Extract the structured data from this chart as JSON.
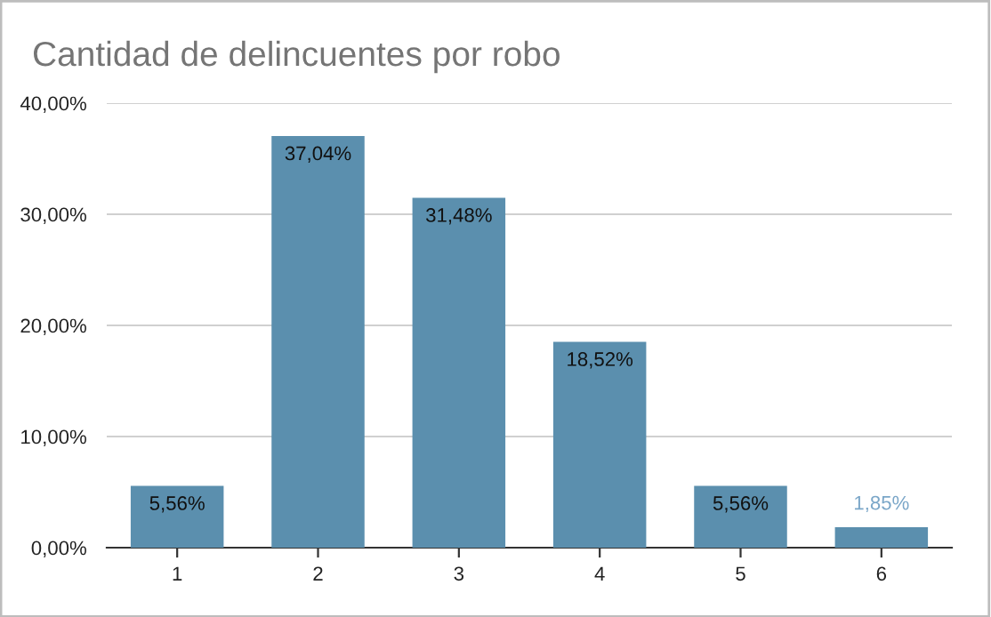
{
  "chart_data": {
    "type": "bar",
    "title": "Cantidad de delincuentes por robo",
    "categories": [
      "1",
      "2",
      "3",
      "4",
      "5",
      "6"
    ],
    "values": [
      5.56,
      37.04,
      31.48,
      18.52,
      5.56,
      1.85
    ],
    "value_labels": [
      "5,56%",
      "37,04%",
      "31,48%",
      "18,52%",
      "5,56%",
      "1,85%"
    ],
    "color": "#5b8fae",
    "ylim": [
      0,
      40
    ],
    "yticks": [
      {
        "value": 0,
        "label": "0,00%"
      },
      {
        "value": 10,
        "label": "10,00%"
      },
      {
        "value": 20,
        "label": "20,00%"
      },
      {
        "value": 30,
        "label": "30,00%"
      },
      {
        "value": 40,
        "label": "40,00%"
      }
    ],
    "grid": "y"
  }
}
